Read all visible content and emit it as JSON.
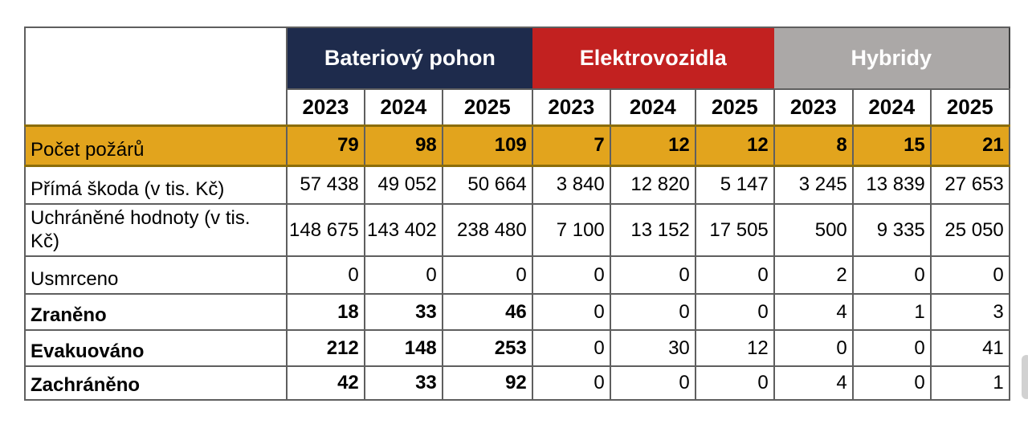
{
  "colors": {
    "battery_header_bg": "#1e2b4c",
    "electro_header_bg": "#c22120",
    "hybrid_header_bg": "#aba8a7",
    "header_text": "#ffffff",
    "highlight_row_bg": "#e2a41d",
    "highlight_row_border": "#8b6d0a",
    "grid_line": "#5f5f5f",
    "cell_text": "#000000"
  },
  "table": {
    "groups": [
      {
        "id": "battery",
        "label": "Bateriový pohon",
        "bg": "#1e2b4c"
      },
      {
        "id": "electro",
        "label": "Elektrovozidla",
        "bg": "#c22120"
      },
      {
        "id": "hybrid",
        "label": "Hybridy",
        "bg": "#aba8a7"
      }
    ],
    "years": [
      "2023",
      "2024",
      "2025",
      "2023",
      "2024",
      "2025",
      "2023",
      "2024",
      "2025"
    ],
    "rows": [
      {
        "label": "Počet požárů",
        "highlight": true,
        "bold_label": false,
        "values": [
          "79",
          "98",
          "109",
          "7",
          "12",
          "12",
          "8",
          "15",
          "21"
        ],
        "bold_cols": [
          0,
          1,
          2,
          3,
          4,
          5,
          6,
          7,
          8
        ]
      },
      {
        "label": "Přímá škoda (v tis. Kč)",
        "highlight": false,
        "bold_label": false,
        "values": [
          "57 438",
          "49 052",
          "50 664",
          "3 840",
          "12 820",
          "5 147",
          "3 245",
          "13 839",
          "27 653"
        ],
        "bold_cols": []
      },
      {
        "label": "Uchráněné hodnoty (v tis. Kč)",
        "highlight": false,
        "bold_label": false,
        "values": [
          "148 675",
          "143 402",
          "238 480",
          "7 100",
          "13 152",
          "17 505",
          "500",
          "9 335",
          "25 050"
        ],
        "bold_cols": []
      },
      {
        "label": "Usmrceno",
        "highlight": false,
        "bold_label": false,
        "values": [
          "0",
          "0",
          "0",
          "0",
          "0",
          "0",
          "2",
          "0",
          "0"
        ],
        "bold_cols": []
      },
      {
        "label": "Zraněno",
        "highlight": false,
        "bold_label": true,
        "values": [
          "18",
          "33",
          "46",
          "0",
          "0",
          "0",
          "4",
          "1",
          "3"
        ],
        "bold_cols": [
          0,
          1,
          2
        ]
      },
      {
        "label": "Evakuováno",
        "highlight": false,
        "bold_label": true,
        "values": [
          "212",
          "148",
          "253",
          "0",
          "30",
          "12",
          "0",
          "0",
          "41"
        ],
        "bold_cols": [
          0,
          1,
          2
        ]
      },
      {
        "label": "Zachráněno",
        "highlight": false,
        "bold_label": true,
        "values": [
          "42",
          "33",
          "92",
          "0",
          "0",
          "0",
          "4",
          "0",
          "1"
        ],
        "bold_cols": [
          0,
          1,
          2
        ]
      }
    ]
  },
  "chart_data": {
    "type": "table",
    "title": "",
    "column_groups": [
      "Bateriový pohon",
      "Elektrovozidla",
      "Hybridy"
    ],
    "years": [
      2023,
      2024,
      2025
    ],
    "metrics": [
      {
        "name": "Počet požárů",
        "Bateriový pohon": [
          79,
          98,
          109
        ],
        "Elektrovozidla": [
          7,
          12,
          12
        ],
        "Hybridy": [
          8,
          15,
          21
        ]
      },
      {
        "name": "Přímá škoda (v tis. Kč)",
        "Bateriový pohon": [
          57438,
          49052,
          50664
        ],
        "Elektrovozidla": [
          3840,
          12820,
          5147
        ],
        "Hybridy": [
          3245,
          13839,
          27653
        ]
      },
      {
        "name": "Uchráněné hodnoty (v tis. Kč)",
        "Bateriový pohon": [
          148675,
          143402,
          238480
        ],
        "Elektrovozidla": [
          7100,
          13152,
          17505
        ],
        "Hybridy": [
          500,
          9335,
          25050
        ]
      },
      {
        "name": "Usmrceno",
        "Bateriový pohon": [
          0,
          0,
          0
        ],
        "Elektrovozidla": [
          0,
          0,
          0
        ],
        "Hybridy": [
          2,
          0,
          0
        ]
      },
      {
        "name": "Zraněno",
        "Bateriový pohon": [
          18,
          33,
          46
        ],
        "Elektrovozidla": [
          0,
          0,
          0
        ],
        "Hybridy": [
          4,
          1,
          3
        ]
      },
      {
        "name": "Evakuováno",
        "Bateriový pohon": [
          212,
          148,
          253
        ],
        "Elektrovozidla": [
          0,
          30,
          12
        ],
        "Hybridy": [
          0,
          0,
          41
        ]
      },
      {
        "name": "Zachráněno",
        "Bateriový pohon": [
          42,
          33,
          92
        ],
        "Elektrovozidla": [
          0,
          0,
          0
        ],
        "Hybridy": [
          4,
          0,
          1
        ]
      }
    ]
  }
}
